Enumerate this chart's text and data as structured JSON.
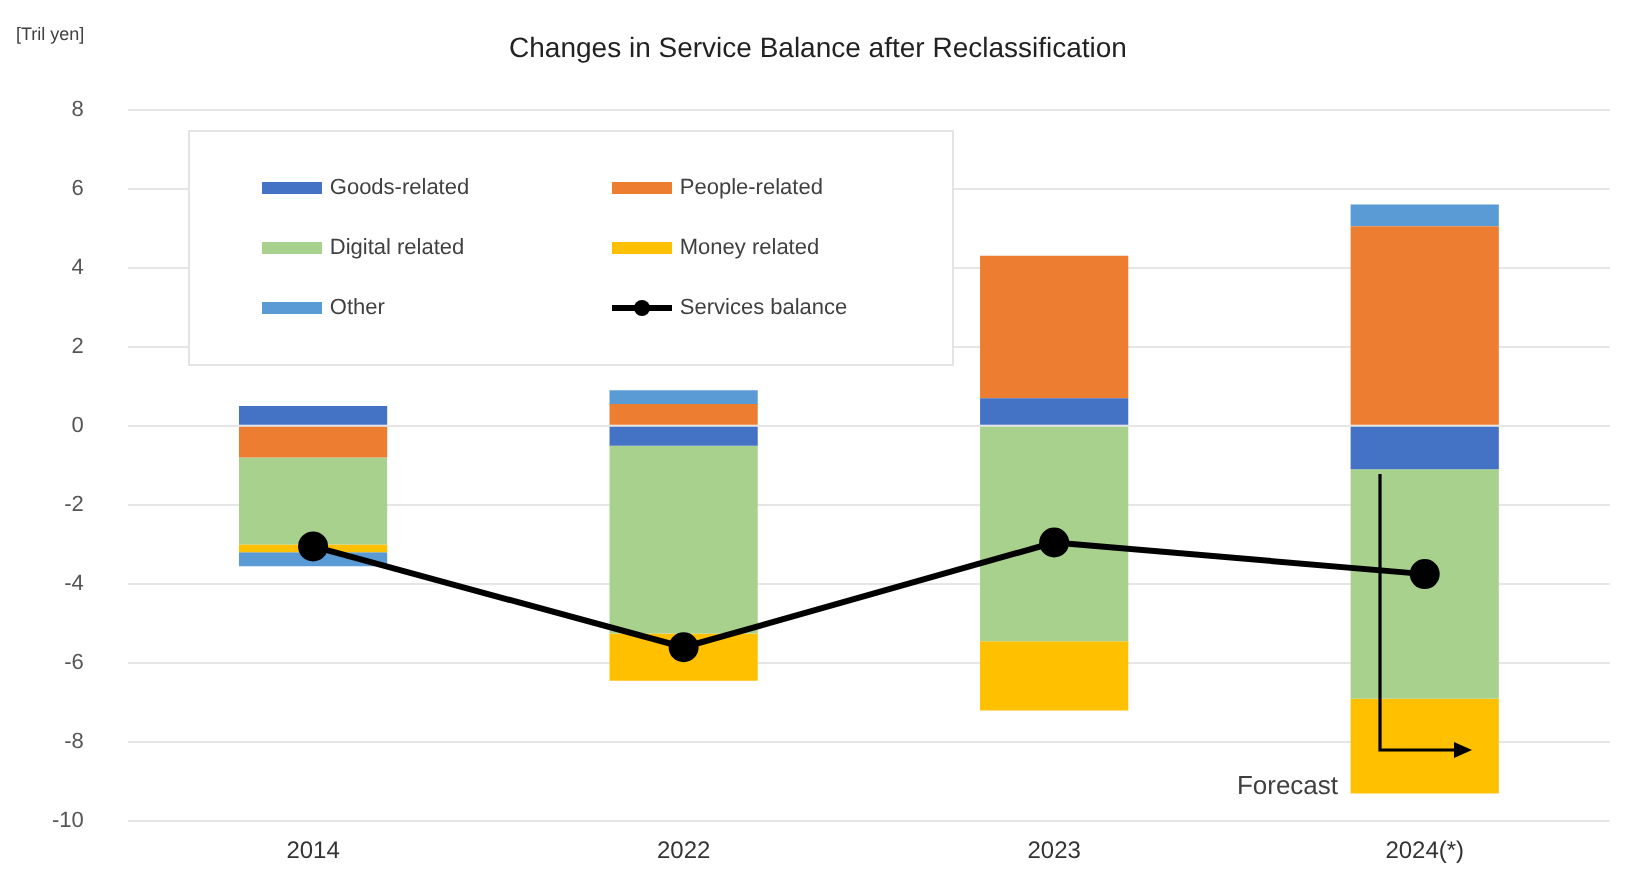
{
  "chart_data": {
    "type": "bar",
    "title": "Changes in Service Balance after Reclassification",
    "ylabel": "[Tril yen]",
    "categories": [
      "2014",
      "2022",
      "2023",
      "2024(*)"
    ],
    "stacked": true,
    "series": [
      {
        "name": "Goods-related",
        "color": "#4472c4",
        "values": [
          0.5,
          -0.5,
          0.7,
          -1.1
        ]
      },
      {
        "name": "People-related",
        "color": "#ed7d31",
        "values": [
          -0.8,
          0.55,
          3.6,
          5.05
        ]
      },
      {
        "name": "Digital related",
        "color": "#a9d18e",
        "values": [
          -2.2,
          -4.75,
          -5.45,
          -5.8
        ]
      },
      {
        "name": "Money related",
        "color": "#ffc000",
        "values": [
          -0.2,
          -1.2,
          -1.75,
          -2.4
        ]
      },
      {
        "name": "Other",
        "color": "#5b9bd5",
        "values": [
          -0.35,
          0.35,
          null,
          0.55
        ]
      },
      {
        "name": "Services balance",
        "type": "line",
        "color": "#000000",
        "marker": "circle",
        "values": [
          -3.05,
          -5.6,
          -2.95,
          -3.75
        ]
      }
    ],
    "ylim": [
      -10,
      8
    ],
    "yticks": [
      -10,
      -8,
      -6,
      -4,
      -2,
      0,
      2,
      4,
      6,
      8
    ],
    "grid": "y",
    "legend": "top left",
    "annotations": [
      "Forecast"
    ]
  }
}
